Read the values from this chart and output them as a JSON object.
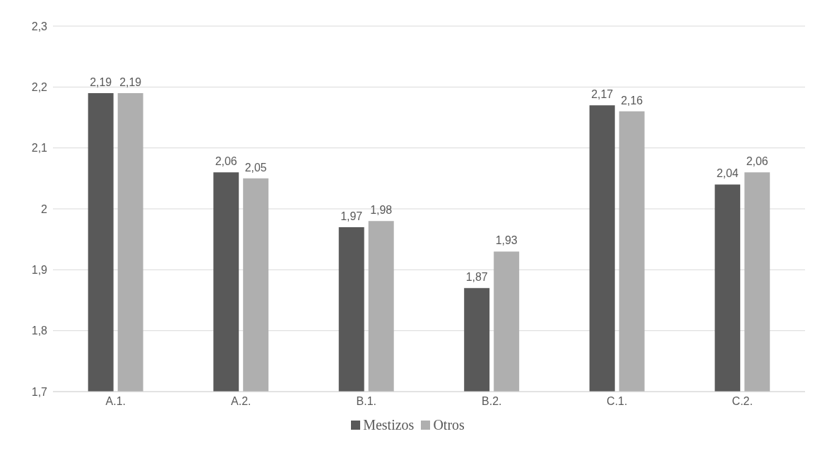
{
  "chart_data": {
    "type": "bar",
    "categories": [
      "A.1.",
      "A.2.",
      "B.1.",
      "B.2.",
      "C.1.",
      "C.2."
    ],
    "series": [
      {
        "name": "Mestizos",
        "color": "#595959",
        "values": [
          2.19,
          2.06,
          1.97,
          1.87,
          2.17,
          2.04
        ],
        "value_labels": [
          "2,19",
          "2,06",
          "1,97",
          "1,87",
          "2,17",
          "2,04"
        ]
      },
      {
        "name": "Otros",
        "color": "#afafaf",
        "values": [
          2.19,
          2.05,
          1.98,
          1.93,
          2.16,
          2.06
        ],
        "value_labels": [
          "2,19",
          "2,05",
          "1,98",
          "1,93",
          "2,16",
          "2,06"
        ]
      }
    ],
    "ylim": [
      1.7,
      2.3
    ],
    "yticks": [
      {
        "value": 1.7,
        "label": "1,7"
      },
      {
        "value": 1.8,
        "label": "1,8"
      },
      {
        "value": 1.9,
        "label": "1,9"
      },
      {
        "value": 2,
        "label": "2"
      },
      {
        "value": 2.1,
        "label": "2,1"
      },
      {
        "value": 2.2,
        "label": "2,2"
      },
      {
        "value": 2.3,
        "label": "2,3"
      }
    ],
    "grid": "y",
    "legend": "bottom"
  }
}
